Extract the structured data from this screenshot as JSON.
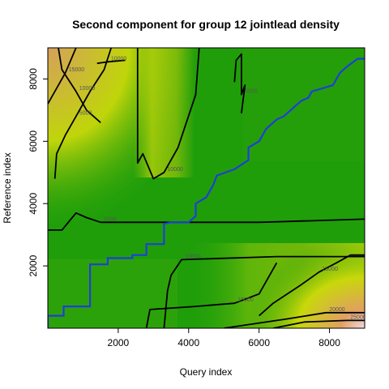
{
  "chart_data": {
    "type": "heatmap",
    "title": "Second component for group 12 jointlead density",
    "xlabel": "Query index",
    "ylabel": "Reference index",
    "xlim": [
      0,
      9000
    ],
    "ylim": [
      0,
      9000
    ],
    "x_ticks": [
      2000,
      4000,
      6000,
      8000
    ],
    "y_ticks": [
      2000,
      4000,
      6000,
      8000
    ],
    "colors": {
      "low": "#1f9e0a",
      "mid": "#c8d80a",
      "high": "#e0a060",
      "peak": "#f0d8e0",
      "contour": "#000000",
      "path": "#1f3fd8"
    },
    "contour_labels": [
      "10000",
      "5000",
      "15000",
      "10000",
      "5000",
      "10000",
      "20000",
      "25000",
      "15000",
      "10000",
      "15000"
    ],
    "alignment_path": [
      [
        0,
        0
      ],
      [
        0,
        400
      ],
      [
        450,
        400
      ],
      [
        450,
        700
      ],
      [
        1200,
        700
      ],
      [
        1200,
        2050
      ],
      [
        1700,
        2050
      ],
      [
        1700,
        2250
      ],
      [
        2400,
        2250
      ],
      [
        2400,
        2350
      ],
      [
        2800,
        2350
      ],
      [
        2800,
        2700
      ],
      [
        3300,
        2700
      ],
      [
        3300,
        3350
      ],
      [
        3500,
        3400
      ],
      [
        4000,
        3400
      ],
      [
        4200,
        3600
      ],
      [
        4200,
        4000
      ],
      [
        4500,
        4200
      ],
      [
        4700,
        4600
      ],
      [
        4800,
        4900
      ],
      [
        5300,
        5100
      ],
      [
        5500,
        5250
      ],
      [
        5700,
        5400
      ],
      [
        5700,
        5800
      ],
      [
        6000,
        6000
      ],
      [
        6200,
        6400
      ],
      [
        6500,
        6700
      ],
      [
        6700,
        6800
      ],
      [
        7000,
        7100
      ],
      [
        7200,
        7300
      ],
      [
        7400,
        7400
      ],
      [
        7500,
        7600
      ],
      [
        7800,
        7700
      ],
      [
        8100,
        7800
      ],
      [
        8200,
        8000
      ],
      [
        8300,
        8200
      ],
      [
        8500,
        8400
      ],
      [
        8800,
        8650
      ],
      [
        9000,
        8650
      ]
    ],
    "contours": [
      {
        "label": "5000",
        "points": [
          [
            0,
            3150
          ],
          [
            400,
            3150
          ],
          [
            800,
            3700
          ],
          [
            1100,
            3550
          ],
          [
            1500,
            3400
          ],
          [
            2500,
            3400
          ],
          [
            4000,
            3400
          ],
          [
            6000,
            3400
          ],
          [
            9000,
            3500
          ]
        ]
      },
      {
        "label": "10000",
        "points": [
          [
            300,
            9000
          ],
          [
            400,
            8300
          ],
          [
            800,
            7600
          ],
          [
            1100,
            7000
          ],
          [
            1500,
            6600
          ]
        ]
      },
      {
        "label": "15000",
        "points": [
          [
            0,
            7200
          ],
          [
            200,
            7600
          ],
          [
            500,
            8200
          ],
          [
            800,
            9000
          ]
        ]
      },
      {
        "label": "5000",
        "points": [
          [
            200,
            4800
          ],
          [
            250,
            5600
          ],
          [
            500,
            6200
          ],
          [
            800,
            6800
          ],
          [
            1200,
            7600
          ],
          [
            1600,
            8300
          ],
          [
            1800,
            9000
          ]
        ]
      },
      {
        "label": "10000",
        "points": [
          [
            1400,
            8500
          ],
          [
            1700,
            8550
          ],
          [
            2200,
            8600
          ]
        ]
      },
      {
        "label": "10000",
        "points": [
          [
            2550,
            9000
          ],
          [
            2550,
            5300
          ],
          [
            2700,
            5600
          ],
          [
            3000,
            4800
          ],
          [
            3300,
            5000
          ],
          [
            3700,
            5800
          ],
          [
            4200,
            7500
          ],
          [
            4300,
            9000
          ]
        ]
      },
      {
        "label": "5000",
        "points": [
          [
            5300,
            7900
          ],
          [
            5350,
            8600
          ],
          [
            5500,
            8800
          ],
          [
            5500,
            7500
          ],
          [
            5600,
            7800
          ],
          [
            5500,
            6900
          ]
        ]
      },
      {
        "label": "10000",
        "points": [
          [
            3300,
            0
          ],
          [
            3400,
            1200
          ],
          [
            3500,
            1700
          ],
          [
            3800,
            2200
          ],
          [
            6500,
            2300
          ],
          [
            9000,
            2300
          ]
        ]
      },
      {
        "label": "15000",
        "points": [
          [
            2800,
            0
          ],
          [
            2900,
            600
          ],
          [
            4200,
            700
          ],
          [
            5300,
            800
          ],
          [
            6000,
            1100
          ],
          [
            6200,
            1500
          ],
          [
            6500,
            2100
          ]
        ]
      },
      {
        "label": "15000",
        "points": [
          [
            6000,
            400
          ],
          [
            6400,
            800
          ],
          [
            7200,
            1400
          ],
          [
            7700,
            1800
          ],
          [
            8200,
            2100
          ],
          [
            8600,
            2350
          ],
          [
            9000,
            2350
          ]
        ]
      },
      {
        "label": "20000",
        "points": [
          [
            5000,
            0
          ],
          [
            6800,
            300
          ],
          [
            7900,
            500
          ],
          [
            9000,
            500
          ]
        ]
      },
      {
        "label": "25000",
        "points": [
          [
            6400,
            0
          ],
          [
            7300,
            200
          ],
          [
            8500,
            250
          ],
          [
            9000,
            250
          ]
        ]
      }
    ]
  }
}
